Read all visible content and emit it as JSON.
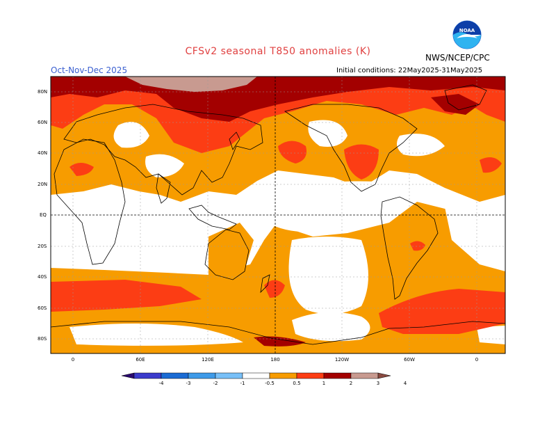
{
  "title": "CFSv2 seasonal T850 anomalies (K)",
  "season": "Oct-Nov-Dec 2025",
  "agency": "NWS/NCEP/CPC",
  "initial_conditions": "Initial conditions: 22May2025-31May2025",
  "logo_text": "NOAA",
  "lat_labels": [
    "80N",
    "60N",
    "40N",
    "20N",
    "EQ",
    "20S",
    "40S",
    "60S",
    "80S"
  ],
  "lon_labels": [
    "0",
    "60E",
    "120E",
    "180",
    "120W",
    "60W",
    "0"
  ],
  "colorbar": {
    "labels": [
      "-4",
      "-3",
      "-2",
      "-1",
      "-0.5",
      "0.5",
      "1",
      "2",
      "3",
      "4"
    ],
    "colors": [
      "#2a0a6e",
      "#3b3bcc",
      "#1a6bd4",
      "#3e9ae8",
      "#78c0f8",
      "#ffffff",
      "#f79c00",
      "#fc3d14",
      "#a30000",
      "#c89a90",
      "#8a4a40"
    ]
  },
  "palette": {
    "light": "#f79c00",
    "medium": "#fc3d14",
    "strong": "#a30000",
    "extreme": "#c89a90",
    "land_outline": "#000000",
    "grid": "#9a9a9a"
  }
}
